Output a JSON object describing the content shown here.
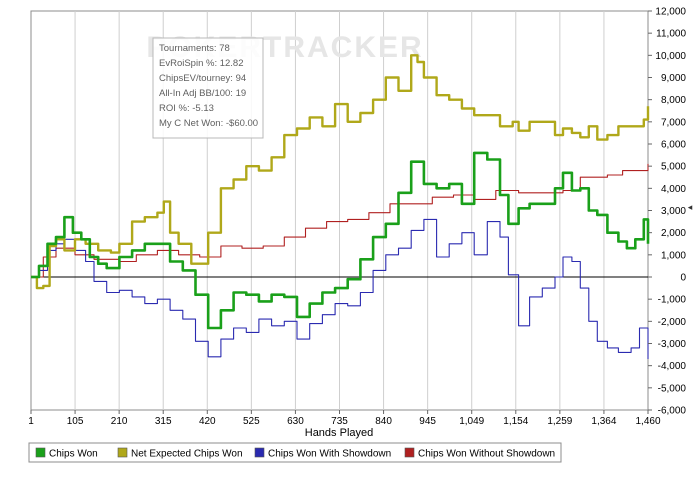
{
  "watermark": "POKERTRACKER",
  "stats_box": {
    "lines": [
      "Tournaments: 78",
      "EvRoiSpin %: 12.82",
      "ChipsEV/tourney: 94",
      "All-In Adj BB/100: 19",
      "ROI %: -5.13",
      "My C Net Won: -$60.00"
    ]
  },
  "colors": {
    "chips_won": "#1aa01a",
    "net_expected": "#b0a81a",
    "with_showdown": "#2a2ab0",
    "without_showdown": "#b02020",
    "zero_line": "#000000"
  },
  "chart_data": {
    "type": "line",
    "title": "",
    "xlabel": "Hands Played",
    "ylabel": "",
    "y_axis_side": "right",
    "xlim": [
      1,
      1460
    ],
    "ylim": [
      -6000,
      12000
    ],
    "x_ticks": [
      "1",
      "105",
      "210",
      "315",
      "420",
      "525",
      "630",
      "735",
      "840",
      "945",
      "1,049",
      "1,154",
      "1,259",
      "1,364",
      "1,460"
    ],
    "y_ticks": [
      "12,000",
      "11,000",
      "10,000",
      "9,000",
      "8,000",
      "7,000",
      "6,000",
      "5,000",
      "4,000",
      "3,000",
      "2,000",
      "1,000",
      "0",
      "-1,000",
      "-2,000",
      "-3,000",
      "-4,000",
      "-5,000",
      "-6,000"
    ],
    "y_tick_values": [
      12000,
      11000,
      10000,
      9000,
      8000,
      7000,
      6000,
      5000,
      4000,
      3000,
      2000,
      1000,
      0,
      -1000,
      -2000,
      -3000,
      -4000,
      -5000,
      -6000
    ],
    "grid": "vertical",
    "legend_position": "bottom",
    "series": [
      {
        "name": "Chips Won",
        "color": "#1aa01a",
        "x": [
          1,
          20,
          40,
          60,
          80,
          100,
          120,
          140,
          160,
          180,
          210,
          240,
          270,
          300,
          330,
          360,
          390,
          420,
          450,
          480,
          510,
          540,
          570,
          600,
          630,
          660,
          690,
          720,
          750,
          780,
          810,
          840,
          870,
          900,
          930,
          960,
          990,
          1020,
          1049,
          1080,
          1110,
          1130,
          1154,
          1180,
          1210,
          1240,
          1259,
          1280,
          1300,
          1320,
          1340,
          1364,
          1390,
          1410,
          1430,
          1450,
          1460
        ],
        "values": [
          0,
          500,
          1500,
          1800,
          2700,
          2000,
          1700,
          900,
          600,
          400,
          900,
          1200,
          1500,
          1500,
          700,
          300,
          -800,
          -2300,
          -1500,
          -700,
          -800,
          -1100,
          -800,
          -900,
          -1800,
          -1200,
          -700,
          -500,
          -100,
          800,
          1800,
          2400,
          3800,
          5200,
          4200,
          4000,
          4200,
          3300,
          5600,
          5300,
          3700,
          2400,
          3100,
          3300,
          3300,
          4000,
          4700,
          3900,
          4000,
          3000,
          2800,
          2000,
          1600,
          1300,
          1700,
          2600,
          1500
        ]
      },
      {
        "name": "Net Expected Chips Won",
        "color": "#b0a81a",
        "x": [
          1,
          15,
          30,
          45,
          60,
          80,
          105,
          130,
          160,
          190,
          210,
          240,
          270,
          300,
          315,
          330,
          350,
          380,
          420,
          450,
          480,
          510,
          540,
          570,
          600,
          630,
          660,
          690,
          720,
          750,
          780,
          810,
          840,
          870,
          900,
          915,
          930,
          960,
          990,
          1020,
          1049,
          1080,
          1110,
          1140,
          1154,
          1180,
          1210,
          1240,
          1259,
          1280,
          1300,
          1320,
          1340,
          1364,
          1390,
          1420,
          1450,
          1460
        ],
        "values": [
          0,
          -500,
          -400,
          1400,
          1700,
          1200,
          1700,
          1500,
          1200,
          1100,
          1500,
          2500,
          2700,
          2900,
          3400,
          2000,
          1500,
          600,
          2000,
          4000,
          4400,
          5000,
          4800,
          5400,
          6400,
          6700,
          7200,
          6800,
          7800,
          7000,
          7400,
          8000,
          9000,
          8400,
          10000,
          9700,
          9000,
          8200,
          8000,
          7600,
          7300,
          7300,
          6800,
          7000,
          6600,
          7000,
          7000,
          6400,
          6700,
          6500,
          6300,
          6800,
          6200,
          6400,
          6800,
          6800,
          7100,
          7700
        ]
      },
      {
        "name": "Chips Won With Showdown",
        "color": "#2a2ab0",
        "x": [
          1,
          20,
          40,
          60,
          80,
          105,
          130,
          150,
          180,
          210,
          240,
          270,
          300,
          330,
          360,
          390,
          420,
          450,
          480,
          510,
          540,
          570,
          600,
          630,
          660,
          690,
          720,
          750,
          780,
          810,
          840,
          870,
          900,
          930,
          960,
          990,
          1020,
          1049,
          1080,
          1110,
          1130,
          1154,
          1180,
          1210,
          1240,
          1259,
          1280,
          1300,
          1320,
          1340,
          1364,
          1390,
          1420,
          1440,
          1460
        ],
        "values": [
          0,
          300,
          1200,
          1500,
          1700,
          1200,
          700,
          -200,
          -700,
          -600,
          -900,
          -1200,
          -1000,
          -1500,
          -1900,
          -2900,
          -3600,
          -2800,
          -2300,
          -2500,
          -1900,
          -2200,
          -2000,
          -2800,
          -2100,
          -1700,
          -1200,
          -1300,
          -700,
          300,
          1000,
          1300,
          2100,
          2600,
          900,
          1500,
          2000,
          1000,
          2500,
          1800,
          100,
          -2200,
          -900,
          -500,
          0,
          900,
          700,
          -500,
          -2000,
          -2900,
          -3200,
          -3400,
          -3200,
          -2300,
          -3700
        ]
      },
      {
        "name": "Chips Won Without Showdown",
        "color": "#b02020",
        "x": [
          1,
          30,
          60,
          105,
          150,
          210,
          250,
          300,
          350,
          400,
          450,
          500,
          550,
          600,
          650,
          700,
          750,
          800,
          850,
          900,
          950,
          1000,
          1049,
          1100,
          1154,
          1200,
          1259,
          1300,
          1364,
          1400,
          1460
        ],
        "values": [
          0,
          900,
          1300,
          1000,
          800,
          700,
          1000,
          1200,
          1000,
          900,
          1400,
          1300,
          1400,
          1800,
          2200,
          2500,
          2600,
          2900,
          3300,
          3300,
          3600,
          3700,
          3500,
          3900,
          3800,
          3800,
          3900,
          4500,
          4600,
          4800,
          5100
        ]
      }
    ]
  }
}
